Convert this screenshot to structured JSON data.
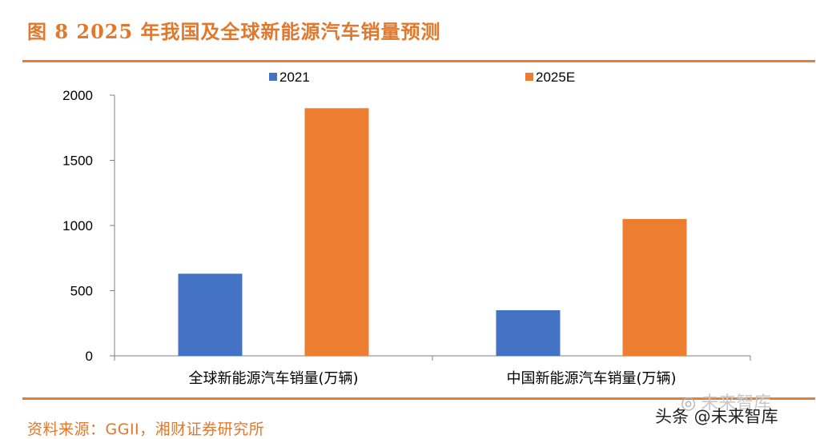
{
  "page": {
    "title": "图 8 2025 年我国及全球新能源汽车销量预测",
    "source": "资料来源：GGII，湘财证券研究所",
    "watermark": "头条 @未来智库",
    "logo_text": "未来智库"
  },
  "colors": {
    "accent": "#e58033",
    "series_2021": "#4472c4",
    "series_2025E": "#ed7d31"
  },
  "chart_data": {
    "type": "bar",
    "title": "",
    "xlabel": "",
    "ylabel": "",
    "categories": [
      "全球新能源汽车销量(万辆)",
      "中国新能源汽车销量(万辆)"
    ],
    "series": [
      {
        "name": "2021",
        "values": [
          630,
          350
        ]
      },
      {
        "name": "2025E",
        "values": [
          1900,
          1050
        ]
      }
    ],
    "ylim": [
      0,
      2000
    ],
    "yticks": [
      0,
      500,
      1000,
      1500,
      2000
    ],
    "grid": false,
    "legend": "top-center"
  }
}
